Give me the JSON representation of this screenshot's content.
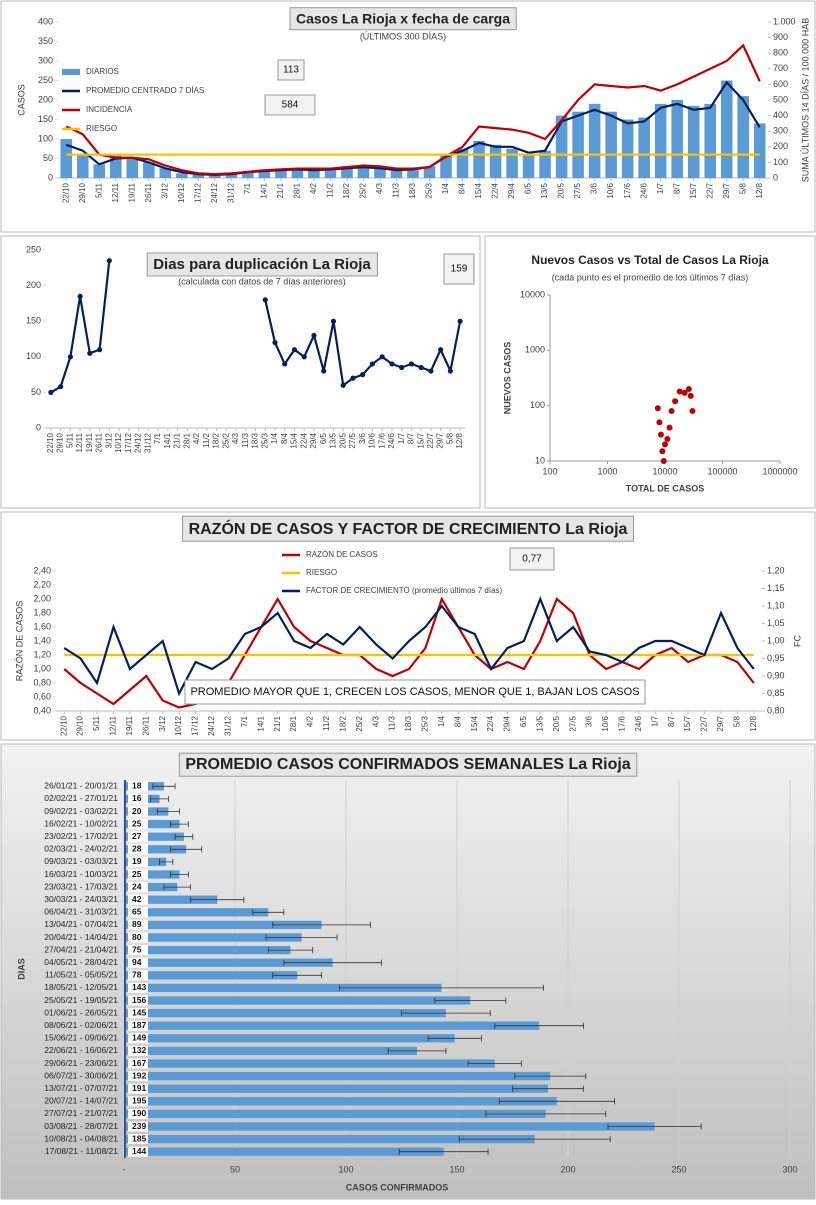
{
  "chart_data": [
    {
      "type": "bar",
      "title": "Casos La Rioja x fecha de carga",
      "subtitle": "(ÚLTIMOS 300 DÍAS)",
      "y_label": "CASOS",
      "y2_label": "SUMA  ÚLTIMOS 14 DÍAS / 100.000 HAB",
      "categories": [
        "22/10",
        "29/10",
        "5/11",
        "12/11",
        "19/11",
        "26/11",
        "3/12",
        "10/12",
        "17/12",
        "24/12",
        "31/12",
        "7/1",
        "14/1",
        "21/1",
        "28/1",
        "4/2",
        "11/2",
        "18/2",
        "25/2",
        "4/3",
        "11/3",
        "18/3",
        "25/3",
        "1/4",
        "8/4",
        "15/4",
        "22/4",
        "29/4",
        "6/5",
        "13/5",
        "20/5",
        "27/5",
        "3/6",
        "10/6",
        "17/6",
        "24/6",
        "1/7",
        "8/7",
        "15/7",
        "22/7",
        "29/7",
        "5/8",
        "12/8"
      ],
      "series": [
        {
          "name": "DIARIOS",
          "type": "bar",
          "color": "#5b9bd5",
          "values": [
            100,
            60,
            35,
            60,
            50,
            40,
            25,
            12,
            8,
            6,
            12,
            14,
            20,
            22,
            25,
            18,
            20,
            30,
            28,
            26,
            18,
            20,
            30,
            60,
            75,
            95,
            85,
            75,
            60,
            70,
            160,
            170,
            190,
            170,
            150,
            155,
            190,
            200,
            185,
            190,
            250,
            210,
            140
          ]
        },
        {
          "name": "PROMEDIO CENTRADO 7 DÍAS",
          "type": "line",
          "color": "#002060",
          "values": [
            85,
            70,
            35,
            50,
            52,
            40,
            25,
            15,
            10,
            8,
            10,
            15,
            18,
            20,
            22,
            20,
            22,
            25,
            28,
            25,
            20,
            22,
            28,
            55,
            70,
            90,
            80,
            80,
            65,
            70,
            145,
            160,
            175,
            160,
            140,
            145,
            180,
            190,
            175,
            180,
            245,
            200,
            130
          ]
        },
        {
          "name": "INCIDENCIA",
          "type": "line",
          "axis": "y2",
          "color": "#c00000",
          "values": [
            330,
            280,
            150,
            130,
            130,
            120,
            80,
            50,
            30,
            25,
            30,
            40,
            50,
            55,
            60,
            60,
            60,
            70,
            80,
            75,
            60,
            60,
            70,
            140,
            200,
            330,
            320,
            310,
            290,
            250,
            370,
            500,
            600,
            590,
            580,
            590,
            560,
            600,
            650,
            700,
            750,
            850,
            620
          ]
        },
        {
          "name": "RIESGO",
          "type": "line",
          "axis": "y2",
          "color": "#ffc000",
          "values": [
            150,
            150,
            150,
            150,
            150,
            150,
            150,
            150,
            150,
            150,
            150,
            150,
            150,
            150,
            150,
            150,
            150,
            150,
            150,
            150,
            150,
            150,
            150,
            150,
            150,
            150,
            150,
            150,
            150,
            150,
            150,
            150,
            150,
            150,
            150,
            150,
            150,
            150,
            150,
            150,
            150,
            150,
            150
          ]
        }
      ],
      "ylim": [
        0,
        400
      ],
      "yticks": [
        0,
        50,
        100,
        150,
        200,
        250,
        300,
        350,
        400
      ],
      "y2lim": [
        0,
        1000
      ],
      "y2ticks": [
        0,
        100,
        200,
        300,
        400,
        500,
        600,
        700,
        800,
        900,
        {
          "value": 1000,
          "label": "1.000"
        }
      ],
      "grid": false,
      "annotations": [
        "113",
        "584"
      ]
    },
    {
      "type": "line",
      "title": "Dias para duplicación La Rioja",
      "subtitle": "(calculada con datos de 7 días anteriores)",
      "categories": [
        "22/10",
        "29/10",
        "5/11",
        "12/11",
        "19/11",
        "26/11",
        "3/12",
        "10/12",
        "17/12",
        "24/12",
        "31/12",
        "7/1",
        "14/1",
        "21/1",
        "28/1",
        "4/2",
        "11/2",
        "18/2",
        "25/2",
        "4/3",
        "11/3",
        "18/3",
        "25/3",
        "1/4",
        "8/4",
        "15/4",
        "22/4",
        "29/4",
        "6/5",
        "13/5",
        "20/5",
        "27/5",
        "3/6",
        "10/6",
        "17/6",
        "24/6",
        "1/7",
        "8/7",
        "15/7",
        "22/7",
        "29/7",
        "5/8",
        "12/8"
      ],
      "series": [
        {
          "name": null,
          "type": "line",
          "color": "#002060",
          "values": [
            50,
            58,
            100,
            185,
            105,
            110,
            235,
            null,
            null,
            null,
            null,
            null,
            null,
            null,
            null,
            null,
            null,
            null,
            null,
            null,
            null,
            null,
            180,
            120,
            90,
            110,
            100,
            130,
            80,
            150,
            60,
            70,
            75,
            90,
            100,
            90,
            85,
            90,
            85,
            80,
            110,
            80,
            150
          ]
        }
      ],
      "markers": true,
      "ylim": [
        0,
        250
      ],
      "yticks": [
        0,
        50,
        100,
        150,
        200,
        250
      ],
      "grid": false,
      "annotations": [
        "159"
      ]
    },
    {
      "type": "scatter",
      "title": "Nuevos Casos vs Total de Casos La Rioja",
      "subtitle": "(cada punto es el promedio de los últimos 7 días)",
      "x_label": "TOTAL DE CASOS",
      "y_label": "NUEVOS CASOS",
      "x": [
        7500,
        8000,
        8500,
        9000,
        9500,
        10000,
        11000,
        12000,
        13000,
        15000,
        18000,
        22000,
        26000,
        28000,
        30000
      ],
      "values": [
        90,
        50,
        30,
        15,
        10,
        20,
        25,
        40,
        80,
        120,
        180,
        170,
        200,
        150,
        80
      ],
      "color": "#c00000",
      "xscale": "log",
      "yscale": "log",
      "xlim": [
        100,
        1000000
      ],
      "xticks": [
        100,
        1000,
        10000,
        100000,
        1000000
      ],
      "ylim": [
        10,
        10000
      ],
      "yticks": [
        10,
        100,
        1000,
        10000
      ]
    },
    {
      "type": "line",
      "title": "RAZÓN DE CASOS Y FACTOR DE CRECIMIENTO La Rioja",
      "y_label": "RAZÓN DE CASOS",
      "y2_label": "FC",
      "categories": [
        "22/10",
        "29/10",
        "5/11",
        "12/11",
        "19/11",
        "26/11",
        "3/12",
        "10/12",
        "17/12",
        "24/12",
        "31/12",
        "7/1",
        "14/1",
        "21/1",
        "28/1",
        "4/2",
        "11/2",
        "18/2",
        "25/2",
        "4/3",
        "11/3",
        "18/3",
        "25/3",
        "1/4",
        "8/4",
        "15/4",
        "22/4",
        "29/4",
        "6/5",
        "13/5",
        "20/5",
        "27/5",
        "3/6",
        "10/6",
        "17/6",
        "24/6",
        "1/7",
        "8/7",
        "15/7",
        "22/7",
        "29/7",
        "5/8",
        "12/8"
      ],
      "series": [
        {
          "name": "RAZÓN DE CASOS",
          "type": "line",
          "color": "#c00000",
          "values": [
            1.0,
            0.8,
            0.65,
            0.5,
            0.7,
            0.9,
            0.55,
            0.45,
            0.5,
            0.6,
            0.8,
            1.2,
            1.6,
            2.0,
            1.6,
            1.4,
            1.3,
            1.2,
            1.2,
            1.0,
            0.9,
            1.0,
            1.3,
            2.0,
            1.6,
            1.2,
            1.0,
            1.1,
            1.0,
            1.4,
            2.0,
            1.8,
            1.2,
            1.0,
            1.1,
            1.0,
            1.2,
            1.3,
            1.1,
            1.2,
            1.2,
            1.1,
            0.8
          ]
        },
        {
          "name": "RIESGO",
          "type": "line",
          "color": "#ffc000",
          "values": [
            1.2,
            1.2,
            1.2,
            1.2,
            1.2,
            1.2,
            1.2,
            1.2,
            1.2,
            1.2,
            1.2,
            1.2,
            1.2,
            1.2,
            1.2,
            1.2,
            1.2,
            1.2,
            1.2,
            1.2,
            1.2,
            1.2,
            1.2,
            1.2,
            1.2,
            1.2,
            1.2,
            1.2,
            1.2,
            1.2,
            1.2,
            1.2,
            1.2,
            1.2,
            1.2,
            1.2,
            1.2,
            1.2,
            1.2,
            1.2,
            1.2,
            1.2,
            1.2
          ]
        },
        {
          "name": "FACTOR DE CRECIMIENTO (promedio últimos 7 días)",
          "type": "line",
          "axis": "y2",
          "color": "#002060",
          "values": [
            0.98,
            0.95,
            0.88,
            1.04,
            0.92,
            0.96,
            1.0,
            0.85,
            0.94,
            0.92,
            0.95,
            1.02,
            1.04,
            1.08,
            1.0,
            0.98,
            1.02,
            0.99,
            1.04,
            0.99,
            0.95,
            1.0,
            1.04,
            1.1,
            1.04,
            1.02,
            0.92,
            0.98,
            1.0,
            1.12,
            1.0,
            1.04,
            0.97,
            0.96,
            0.94,
            0.98,
            1.0,
            1.0,
            0.98,
            0.96,
            1.08,
            0.98,
            0.92
          ]
        }
      ],
      "ylim": [
        0.4,
        2.4
      ],
      "yticks": [
        {
          "value": 0.4,
          "label": "0,40"
        },
        {
          "value": 0.6,
          "label": "0,60"
        },
        {
          "value": 0.8,
          "label": "0,80"
        },
        {
          "value": 1.0,
          "label": "1,00"
        },
        {
          "value": 1.2,
          "label": "1,20"
        },
        {
          "value": 1.4,
          "label": "1,40"
        },
        {
          "value": 1.6,
          "label": "1,60"
        },
        {
          "value": 1.8,
          "label": "1,80"
        },
        {
          "value": 2.0,
          "label": "2,00"
        },
        {
          "value": 2.2,
          "label": "2,20"
        },
        {
          "value": 2.4,
          "label": "2,40"
        }
      ],
      "y2lim": [
        0.8,
        1.2
      ],
      "y2ticks": [
        {
          "value": 0.8,
          "label": "0,80"
        },
        {
          "value": 0.85,
          "label": "0,85"
        },
        {
          "value": 0.9,
          "label": "0,90"
        },
        {
          "value": 0.95,
          "label": "0,95"
        },
        {
          "value": 1.0,
          "label": "1,00"
        },
        {
          "value": 1.05,
          "label": "1,05"
        },
        {
          "value": 1.1,
          "label": "1,10"
        },
        {
          "value": 1.15,
          "label": "1,15"
        },
        {
          "value": 1.2,
          "label": "1,20"
        }
      ],
      "grid": false,
      "annotations": [
        "0,77",
        "PROMEDIO MAYOR QUE 1, CRECEN LOS CASOS, MENOR QUE 1, BAJAN LOS CASOS"
      ]
    },
    {
      "type": "barh",
      "title": "PROMEDIO CASOS CONFIRMADOS SEMANALES La Rioja",
      "x_label": "CASOS CONFIRMADOS",
      "y_label": "DIAS",
      "categories": [
        "26/01/21 - 20/01/21",
        "02/02/21 - 27/01/21",
        "09/02/21 - 03/02/21",
        "16/02/21 - 10/02/21",
        "23/02/21 - 17/02/21",
        "02/03/21 - 24/02/21",
        "09/03/21 - 03/03/21",
        "16/03/21 - 10/03/21",
        "23/03/21 - 17/03/21",
        "30/03/21 - 24/03/21",
        "06/04/21 - 31/03/21",
        "13/04/21 - 07/04/21",
        "20/04/21 - 14/04/21",
        "27/04/21 - 21/04/21",
        "04/05/21 - 28/04/21",
        "11/05/21 - 05/05/21",
        "18/05/21 - 12/05/21",
        "25/05/21 - 19/05/21",
        "01/06/21 - 26/05/21",
        "08/06/21 - 02/06/21",
        "15/06/21 - 09/06/21",
        "22/06/21 - 16/06/21",
        "29/06/21 - 23/06/21",
        "06/07/21 - 30/06/21",
        "13/07/21 - 07/07/21",
        "20/07/21 - 14/07/21",
        "27/07/21 - 21/07/21",
        "03/08/21 - 28/07/21",
        "10/08/21 - 04/08/21",
        "17/08/21 - 11/08/21"
      ],
      "values": [
        18,
        16,
        20,
        25,
        27,
        28,
        19,
        25,
        24,
        42,
        65,
        89,
        80,
        75,
        94,
        78,
        143,
        156,
        145,
        187,
        149,
        132,
        167,
        192,
        191,
        195,
        190,
        239,
        185,
        144
      ],
      "errors": [
        5,
        4,
        5,
        4,
        4,
        7,
        3,
        4,
        6,
        12,
        7,
        22,
        16,
        10,
        22,
        11,
        46,
        16,
        20,
        20,
        12,
        13,
        12,
        16,
        16,
        26,
        27,
        21,
        34,
        20
      ],
      "color": "#5b9bd5",
      "xlim": [
        0,
        300
      ],
      "xticks": [
        {
          "value": 0,
          "label": "-"
        },
        50,
        100,
        150,
        200,
        250,
        300
      ],
      "grid": true
    }
  ]
}
